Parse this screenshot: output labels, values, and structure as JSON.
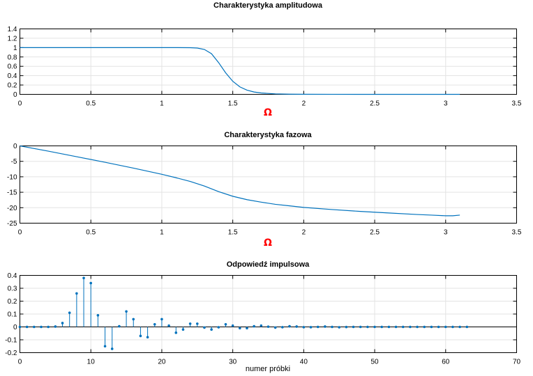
{
  "colors": {
    "series": "#0072bd",
    "grid": "#e3e3e3",
    "axes": "#000000",
    "omega": "#ff0000"
  },
  "chart_data": [
    {
      "type": "line",
      "title": "Charakterystyka amplitudowa",
      "xlabel": "Ω",
      "ylabel": "",
      "xlim": [
        0,
        3.5
      ],
      "ylim": [
        0,
        1.4
      ],
      "grid": true,
      "xticks": [
        "0",
        "0.5",
        "1",
        "1.5",
        "2",
        "2.5",
        "3",
        "3.5"
      ],
      "yticks": [
        "0",
        "0.2",
        "0.4",
        "0.6",
        "0.8",
        "1",
        "1.2",
        "1.4"
      ],
      "x": [
        0,
        0.2,
        0.4,
        0.6,
        0.8,
        1.0,
        1.1,
        1.2,
        1.25,
        1.3,
        1.35,
        1.4,
        1.45,
        1.5,
        1.55,
        1.6,
        1.65,
        1.7,
        1.8,
        1.9,
        2.0,
        2.2,
        2.5,
        3.0,
        3.1
      ],
      "y": [
        1,
        1,
        1,
        1,
        1,
        1,
        1,
        0.998,
        0.99,
        0.96,
        0.87,
        0.68,
        0.46,
        0.28,
        0.16,
        0.09,
        0.05,
        0.03,
        0.01,
        0.004,
        0.002,
        0.001,
        0,
        0,
        0
      ]
    },
    {
      "type": "line",
      "title": "Charakterystyka fazowa",
      "xlabel": "Ω",
      "ylabel": "",
      "xlim": [
        0,
        3.5
      ],
      "ylim": [
        -25,
        0
      ],
      "grid": true,
      "xticks": [
        "0",
        "0.5",
        "1",
        "1.5",
        "2",
        "2.5",
        "3",
        "3.5"
      ],
      "yticks": [
        "0",
        "-5",
        "-10",
        "-15",
        "-20",
        "-25"
      ],
      "x": [
        0,
        0.2,
        0.4,
        0.6,
        0.8,
        1.0,
        1.1,
        1.2,
        1.3,
        1.4,
        1.5,
        1.6,
        1.7,
        1.8,
        1.9,
        2.0,
        2.2,
        2.4,
        2.6,
        2.8,
        2.9,
        3.0,
        3.05,
        3.1
      ],
      "y": [
        0,
        -1.7,
        -3.5,
        -5.3,
        -7.2,
        -9.2,
        -10.3,
        -11.5,
        -13.0,
        -14.8,
        -16.3,
        -17.4,
        -18.2,
        -18.9,
        -19.4,
        -19.9,
        -20.6,
        -21.2,
        -21.7,
        -22.2,
        -22.4,
        -22.6,
        -22.6,
        -22.4
      ]
    },
    {
      "type": "stem",
      "title": "Odpowiedź impulsowa",
      "xlabel": "numer próbki",
      "ylabel": "",
      "xlim": [
        0,
        70
      ],
      "ylim": [
        -0.2,
        0.4
      ],
      "grid": true,
      "xticks": [
        "0",
        "10",
        "20",
        "30",
        "40",
        "50",
        "60",
        "70"
      ],
      "yticks": [
        "0.4",
        "0.3",
        "0.2",
        "0.1",
        "0",
        "-0.1",
        "-0.2"
      ],
      "n": [
        0,
        1,
        2,
        3,
        4,
        5,
        6,
        7,
        8,
        9,
        10,
        11,
        12,
        13,
        14,
        15,
        16,
        17,
        18,
        19,
        20,
        21,
        22,
        23,
        24,
        25,
        26,
        27,
        28,
        29,
        30,
        31,
        32,
        33,
        34,
        35,
        36,
        37,
        38,
        39,
        40,
        41,
        42,
        43,
        44,
        45,
        46,
        47,
        48,
        49,
        50,
        51,
        52,
        53,
        54,
        55,
        56,
        57,
        58,
        59,
        60,
        61,
        62,
        63
      ],
      "values": [
        0,
        0,
        0,
        0,
        0,
        0.003,
        0.03,
        0.11,
        0.26,
        0.38,
        0.34,
        0.09,
        -0.15,
        -0.17,
        0.005,
        0.12,
        0.06,
        -0.07,
        -0.08,
        0.02,
        0.06,
        0.01,
        -0.045,
        -0.02,
        0.025,
        0.025,
        -0.005,
        -0.02,
        -0.003,
        0.02,
        0.01,
        -0.01,
        -0.01,
        0.005,
        0.01,
        0.002,
        -0.005,
        -0.002,
        0.005,
        0.003,
        -0.002,
        -0.002,
        0,
        0.003,
        0,
        -0.003,
        -0.001,
        0,
        0,
        0,
        0,
        0,
        0,
        0,
        0,
        0,
        0,
        0,
        0,
        0,
        0,
        0,
        0,
        0
      ]
    }
  ]
}
